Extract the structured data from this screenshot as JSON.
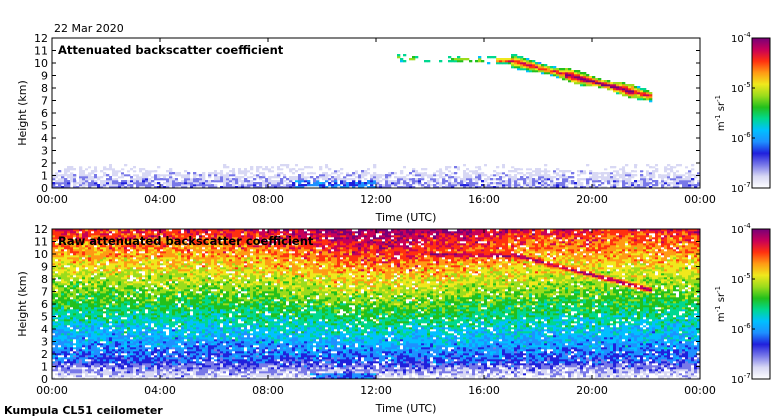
{
  "date": "22 Mar 2020",
  "site": "Kumpula CL51 ceilometer",
  "colors": {
    "colormap": [
      "#ffffff",
      "#d8d8f4",
      "#7878e8",
      "#2020dc",
      "#1e90ff",
      "#00c0ff",
      "#00d890",
      "#22c01c",
      "#9bdc1c",
      "#f0e81c",
      "#ff9a14",
      "#ff3010",
      "#c80058",
      "#780078"
    ]
  },
  "chart_data": [
    {
      "type": "heatmap",
      "title": "Attenuated backscatter coefficient",
      "xlabel": "Time (UTC)",
      "ylabel": "Height (km)",
      "x_ticks": [
        "00:00",
        "04:00",
        "08:00",
        "12:00",
        "16:00",
        "20:00",
        "00:00"
      ],
      "xlim_hours": [
        0,
        24
      ],
      "y_ticks": [
        0,
        1,
        2,
        3,
        4,
        5,
        6,
        7,
        8,
        9,
        10,
        11,
        12
      ],
      "ylim": [
        0,
        12
      ],
      "colorbar": {
        "scale": "log",
        "range": [
          1e-07,
          0.0001
        ],
        "ticks": [
          "10",
          "10",
          "10",
          "10"
        ],
        "exponents": [
          "-7",
          "-6",
          "-5",
          "-4"
        ],
        "label_parts": [
          "m",
          "-1",
          " sr",
          "-1"
        ]
      },
      "features": [
        {
          "name": "boundary layer backscatter",
          "time_range_h": [
            0,
            24
          ],
          "height_range_km": [
            0,
            2
          ],
          "log10_level": -6.5
        },
        {
          "name": "cirrus cloud",
          "time_range_h": [
            12.8,
            22
          ],
          "height_range_km": [
            7.5,
            11
          ],
          "peak_log10_level": -4.3
        }
      ]
    },
    {
      "type": "heatmap",
      "title": "Raw attenuated backscatter coefficient",
      "xlabel": "Time (UTC)",
      "ylabel": "Height (km)",
      "x_ticks": [
        "00:00",
        "04:00",
        "08:00",
        "12:00",
        "16:00",
        "20:00",
        "00:00"
      ],
      "xlim_hours": [
        0,
        24
      ],
      "y_ticks": [
        0,
        1,
        2,
        3,
        4,
        5,
        6,
        7,
        8,
        9,
        10,
        11,
        12
      ],
      "ylim": [
        0,
        12
      ],
      "colorbar": {
        "scale": "log",
        "range": [
          1e-07,
          0.0001
        ],
        "ticks": [
          "10",
          "10",
          "10",
          "10"
        ],
        "exponents": [
          "-7",
          "-6",
          "-5",
          "-4"
        ],
        "label_parts": [
          "m",
          "-1",
          " sr",
          "-1"
        ]
      },
      "features": [
        {
          "name": "noise background",
          "time_range_h": [
            0,
            24
          ],
          "height_range_km": [
            0,
            12
          ],
          "log10_level": -5.5
        },
        {
          "name": "cirrus cloud",
          "time_range_h": [
            14,
            22
          ],
          "height_range_km": [
            7.5,
            10.5
          ],
          "peak_log10_level": -4.3
        }
      ]
    }
  ]
}
